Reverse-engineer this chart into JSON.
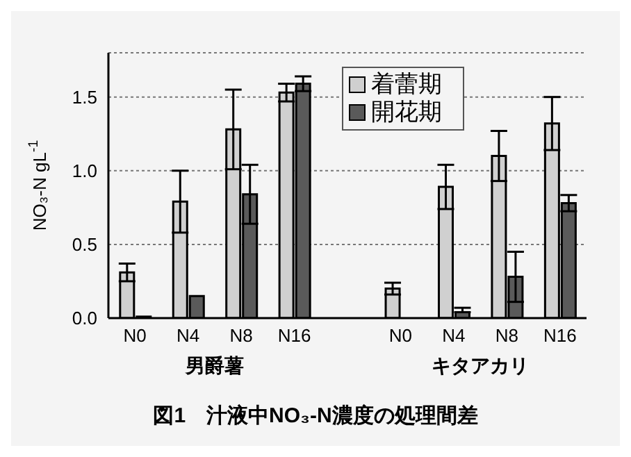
{
  "chart_data": {
    "type": "bar",
    "title": "図1　汁液中NO₃-N濃度の処理間差",
    "ylabel": "NO₃-N gL$^{-1}$",
    "categories": [
      "N0",
      "N4",
      "N8",
      "N16",
      null,
      "N0",
      "N4",
      "N8",
      "N16"
    ],
    "series": [
      {
        "name": "着蕾期",
        "color": "#d0d0d0",
        "values": [
          0.31,
          0.79,
          1.28,
          1.53,
          null,
          0.2,
          0.89,
          1.1,
          1.32
        ],
        "errors": [
          0.06,
          0.21,
          0.27,
          0.06,
          null,
          0.04,
          0.15,
          0.17,
          0.18
        ]
      },
      {
        "name": "開花期",
        "color": "#5a5a5a",
        "values": [
          0.01,
          0.15,
          0.84,
          1.59,
          null,
          0,
          0.04,
          0.28,
          0.78
        ],
        "errors": [
          null,
          null,
          0.2,
          0.05,
          null,
          null,
          [
            0.04,
            0.07
          ],
          0.17,
          0.055
        ]
      }
    ],
    "annotations": [
      "男爵薯",
      "キタアカリ"
    ],
    "ylim": [
      0,
      1.8
    ],
    "yticks": [
      {
        "value": 0,
        "label": "0.0"
      },
      0.5,
      {
        "value": 1,
        "label": "1.0"
      },
      1.5
    ],
    "grid": "y",
    "legend": "top"
  }
}
